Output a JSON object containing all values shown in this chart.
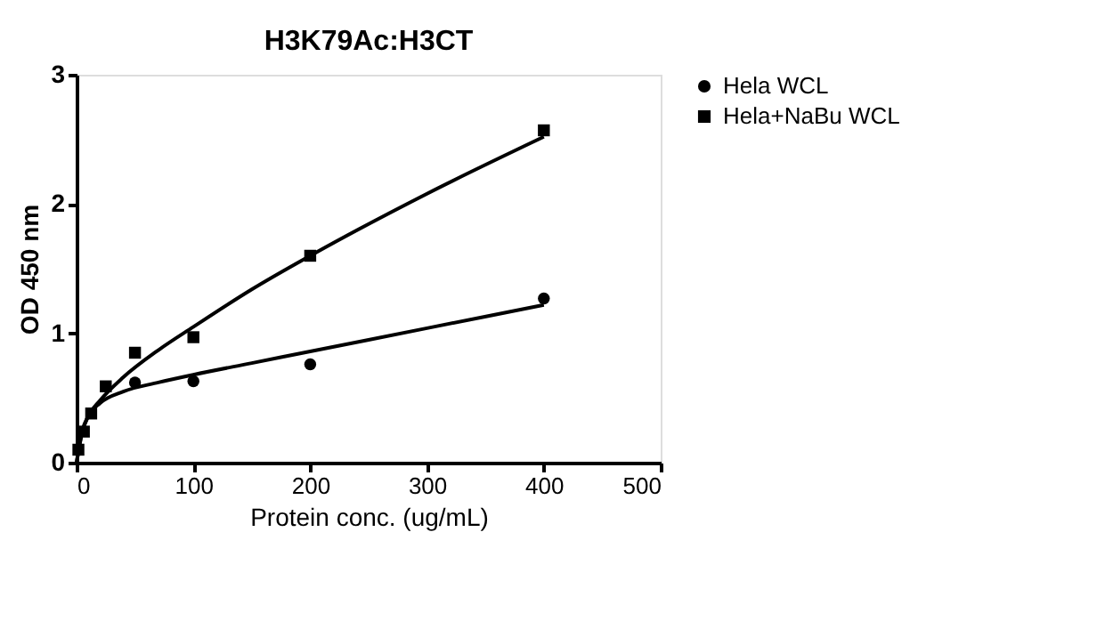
{
  "chart_data": {
    "type": "scatter",
    "title": "H3K79Ac:H3CT",
    "xlabel": "Protein conc. (ug/mL)",
    "ylabel": "OD 450 nm",
    "xlim": [
      0,
      500
    ],
    "xticks": [
      0,
      100,
      200,
      300,
      400,
      500
    ],
    "ylim": [
      0,
      3
    ],
    "yticks": [
      0,
      1,
      2,
      3
    ],
    "grid": false,
    "legend": "top right",
    "series": [
      {
        "name": "Hela WCL",
        "marker": "circle",
        "color": "#000000",
        "x": [
          50,
          100,
          200,
          400
        ],
        "values": [
          0.62,
          0.63,
          0.76,
          1.27
        ]
      },
      {
        "name": "Hela+NaBu WCL",
        "marker": "square",
        "color": "#000000",
        "x": [
          1.56,
          6.25,
          12.5,
          25,
          50,
          100,
          200,
          400
        ],
        "values": [
          0.1,
          0.24,
          0.38,
          0.59,
          0.85,
          0.97,
          1.6,
          2.57
        ]
      },
      {
        "type": "line",
        "color": "#000000",
        "x": [
          0,
          5,
          10,
          20,
          40,
          70,
          100,
          150,
          200,
          300,
          400
        ],
        "values": [
          0,
          0.25,
          0.36,
          0.46,
          0.55,
          0.62,
          0.68,
          0.77,
          0.86,
          1.04,
          1.22
        ]
      },
      {
        "type": "line",
        "color": "#000000",
        "x": [
          0,
          5,
          10,
          20,
          40,
          70,
          100,
          150,
          200,
          300,
          400
        ],
        "values": [
          0,
          0.24,
          0.36,
          0.48,
          0.66,
          0.87,
          1.05,
          1.34,
          1.6,
          2.08,
          2.52
        ]
      }
    ]
  }
}
